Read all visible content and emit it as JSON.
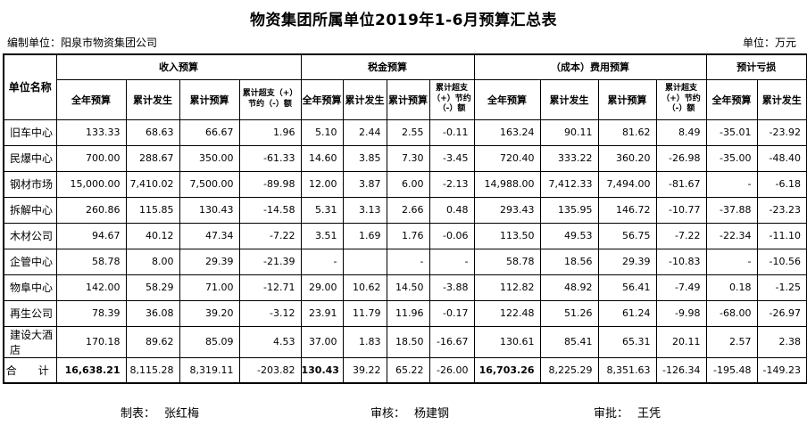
{
  "title": "物资集团所属单位2019年1-6月预算汇总表",
  "meta": {
    "prepared_by": "编制单位：阳泉市物资集团公司",
    "unit": "单位：万元"
  },
  "table": {
    "corner_header": "单位名称",
    "groups": [
      {
        "label": "收入预算",
        "cols": [
          "全年预算",
          "累计发生",
          "累计预算",
          "累计超支（+）节约（-）额"
        ]
      },
      {
        "label": "税金预算",
        "cols": [
          "全年预算",
          "累计发生",
          "累计预算",
          "累计超支（+）节约（-）额"
        ]
      },
      {
        "label": "（成本）费用预算",
        "cols": [
          "全年预算",
          "累计发生",
          "累计预算",
          "累计超支（+）节约（-）额"
        ]
      },
      {
        "label": "预计亏损",
        "cols": [
          "全年预算",
          "累计发生"
        ]
      }
    ],
    "rows": [
      {
        "name": "旧车中心",
        "values": [
          "133.33",
          "68.63",
          "66.67",
          "1.96",
          "5.10",
          "2.44",
          "2.55",
          "-0.11",
          "163.24",
          "90.11",
          "81.62",
          "8.49",
          "-35.01",
          "-23.92"
        ]
      },
      {
        "name": "民爆中心",
        "values": [
          "700.00",
          "288.67",
          "350.00",
          "-61.33",
          "14.60",
          "3.85",
          "7.30",
          "-3.45",
          "720.40",
          "333.22",
          "360.20",
          "-26.98",
          "-35.00",
          "-48.40"
        ]
      },
      {
        "name": "钢材市场",
        "values": [
          "15,000.00",
          "7,410.02",
          "7,500.00",
          "-89.98",
          "12.00",
          "3.87",
          "6.00",
          "-2.13",
          "14,988.00",
          "7,412.33",
          "7,494.00",
          "-81.67",
          "-",
          "-6.18"
        ]
      },
      {
        "name": "拆解中心",
        "values": [
          "260.86",
          "115.85",
          "130.43",
          "-14.58",
          "5.31",
          "3.13",
          "2.66",
          "0.48",
          "293.43",
          "135.95",
          "146.72",
          "-10.77",
          "-37.88",
          "-23.23"
        ]
      },
      {
        "name": "木材公司",
        "values": [
          "94.67",
          "40.12",
          "47.34",
          "-7.22",
          "3.51",
          "1.69",
          "1.76",
          "-0.06",
          "113.50",
          "49.53",
          "56.75",
          "-7.22",
          "-22.34",
          "-11.10"
        ]
      },
      {
        "name": "企管中心",
        "values": [
          "58.78",
          "8.00",
          "29.39",
          "-21.39",
          "-",
          "",
          "-",
          "-",
          "58.78",
          "18.56",
          "29.39",
          "-10.83",
          "-",
          "-10.56"
        ]
      },
      {
        "name": "物阜中心",
        "values": [
          "142.00",
          "58.29",
          "71.00",
          "-12.71",
          "29.00",
          "10.62",
          "14.50",
          "-3.88",
          "112.82",
          "48.92",
          "56.41",
          "-7.49",
          "0.18",
          "-1.25"
        ]
      },
      {
        "name": "再生公司",
        "values": [
          "78.39",
          "36.08",
          "39.20",
          "-3.12",
          "23.91",
          "11.79",
          "11.96",
          "-0.17",
          "122.48",
          "51.26",
          "61.24",
          "-9.98",
          "-68.00",
          "-26.97"
        ]
      },
      {
        "name": "建设大酒店",
        "values": [
          "170.18",
          "89.62",
          "85.09",
          "4.53",
          "37.00",
          "1.83",
          "18.50",
          "-16.67",
          "130.61",
          "85.41",
          "65.31",
          "20.11",
          "2.57",
          "2.38"
        ]
      },
      {
        "name": "合　计",
        "is_total": true,
        "bold_value_indices": [
          0,
          4,
          8
        ],
        "values": [
          "16,638.21",
          "8,115.28",
          "8,319.11",
          "-203.82",
          "130.43",
          "39.22",
          "65.22",
          "-26.00",
          "16,703.26",
          "8,225.29",
          "8,351.63",
          "-126.34",
          "-195.48",
          "-149.23"
        ]
      }
    ]
  },
  "footer": {
    "items": [
      {
        "label": "制表：",
        "value": "张红梅"
      },
      {
        "label": "审核：",
        "value": "杨建钢"
      },
      {
        "label": "审批：",
        "value": "王凭"
      }
    ]
  }
}
